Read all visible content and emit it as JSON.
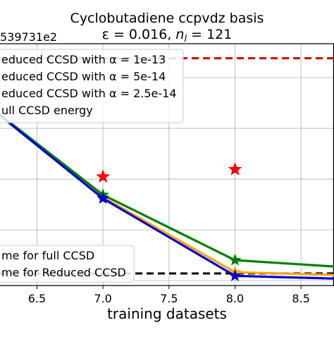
{
  "chart_data": {
    "type": "line",
    "title_line1": "Cyclobutadiene ccpvdz basis",
    "title_line2_prefix": "ε = 0.016, ",
    "title_line2_var": "n",
    "title_line2_sub": "l",
    "title_line2_suffix": " = 121",
    "offset_label": "539731e2",
    "xlabel": "training datasets",
    "xlim": [
      6.22,
      8.75
    ],
    "ylim": [
      0,
      100
    ],
    "x_ticks": [
      6.5,
      7.0,
      7.5,
      8.0,
      8.5
    ],
    "x_tick_labels": [
      "6.5",
      "7.0",
      "7.5",
      "8.0",
      "8.5"
    ],
    "y_grid": [
      2,
      23,
      44,
      65,
      86
    ],
    "x": [
      6.0,
      7.0,
      8.0,
      9.0
    ],
    "series": [
      {
        "name": "Reduced CCSD with α = 1e-13",
        "color": "#ff0000",
        "values": [
          null,
          45,
          48,
          null
        ],
        "style": "star",
        "label_visible": "educed CCSD with α = 1e-13"
      },
      {
        "name": "Reduced CCSD with α = 5e-14",
        "color": "#008000",
        "values": [
          80,
          37.5,
          10.5,
          7
        ],
        "label_visible": "educed CCSD with α = 5e-14"
      },
      {
        "name": "Reduced CCSD with α = 2.5e-14",
        "color": "#0000cd",
        "values": [
          80,
          36,
          4,
          2.5
        ],
        "label_visible": "educed CCSD with α = 2.5e-14"
      },
      {
        "name": "Reduced CCSD with α = 5e-14 (orange)",
        "color": "#ffa500",
        "values": [
          80,
          36.5,
          5.5,
          4
        ],
        "label_visible": ""
      }
    ],
    "hlines": [
      {
        "name": "Full CCSD energy",
        "color": "#cc0000",
        "y": 94,
        "label_visible": "ull CCSD energy"
      },
      {
        "name": "Time for Reduced CCSD",
        "color": "#000000",
        "y": 5,
        "label_visible": "me for Reduced CCSD"
      }
    ],
    "legend_bottom": [
      "me for full CCSD",
      "me for Reduced CCSD"
    ],
    "legend_bottom_colors": [
      "#ffa500",
      "#000000"
    ]
  }
}
